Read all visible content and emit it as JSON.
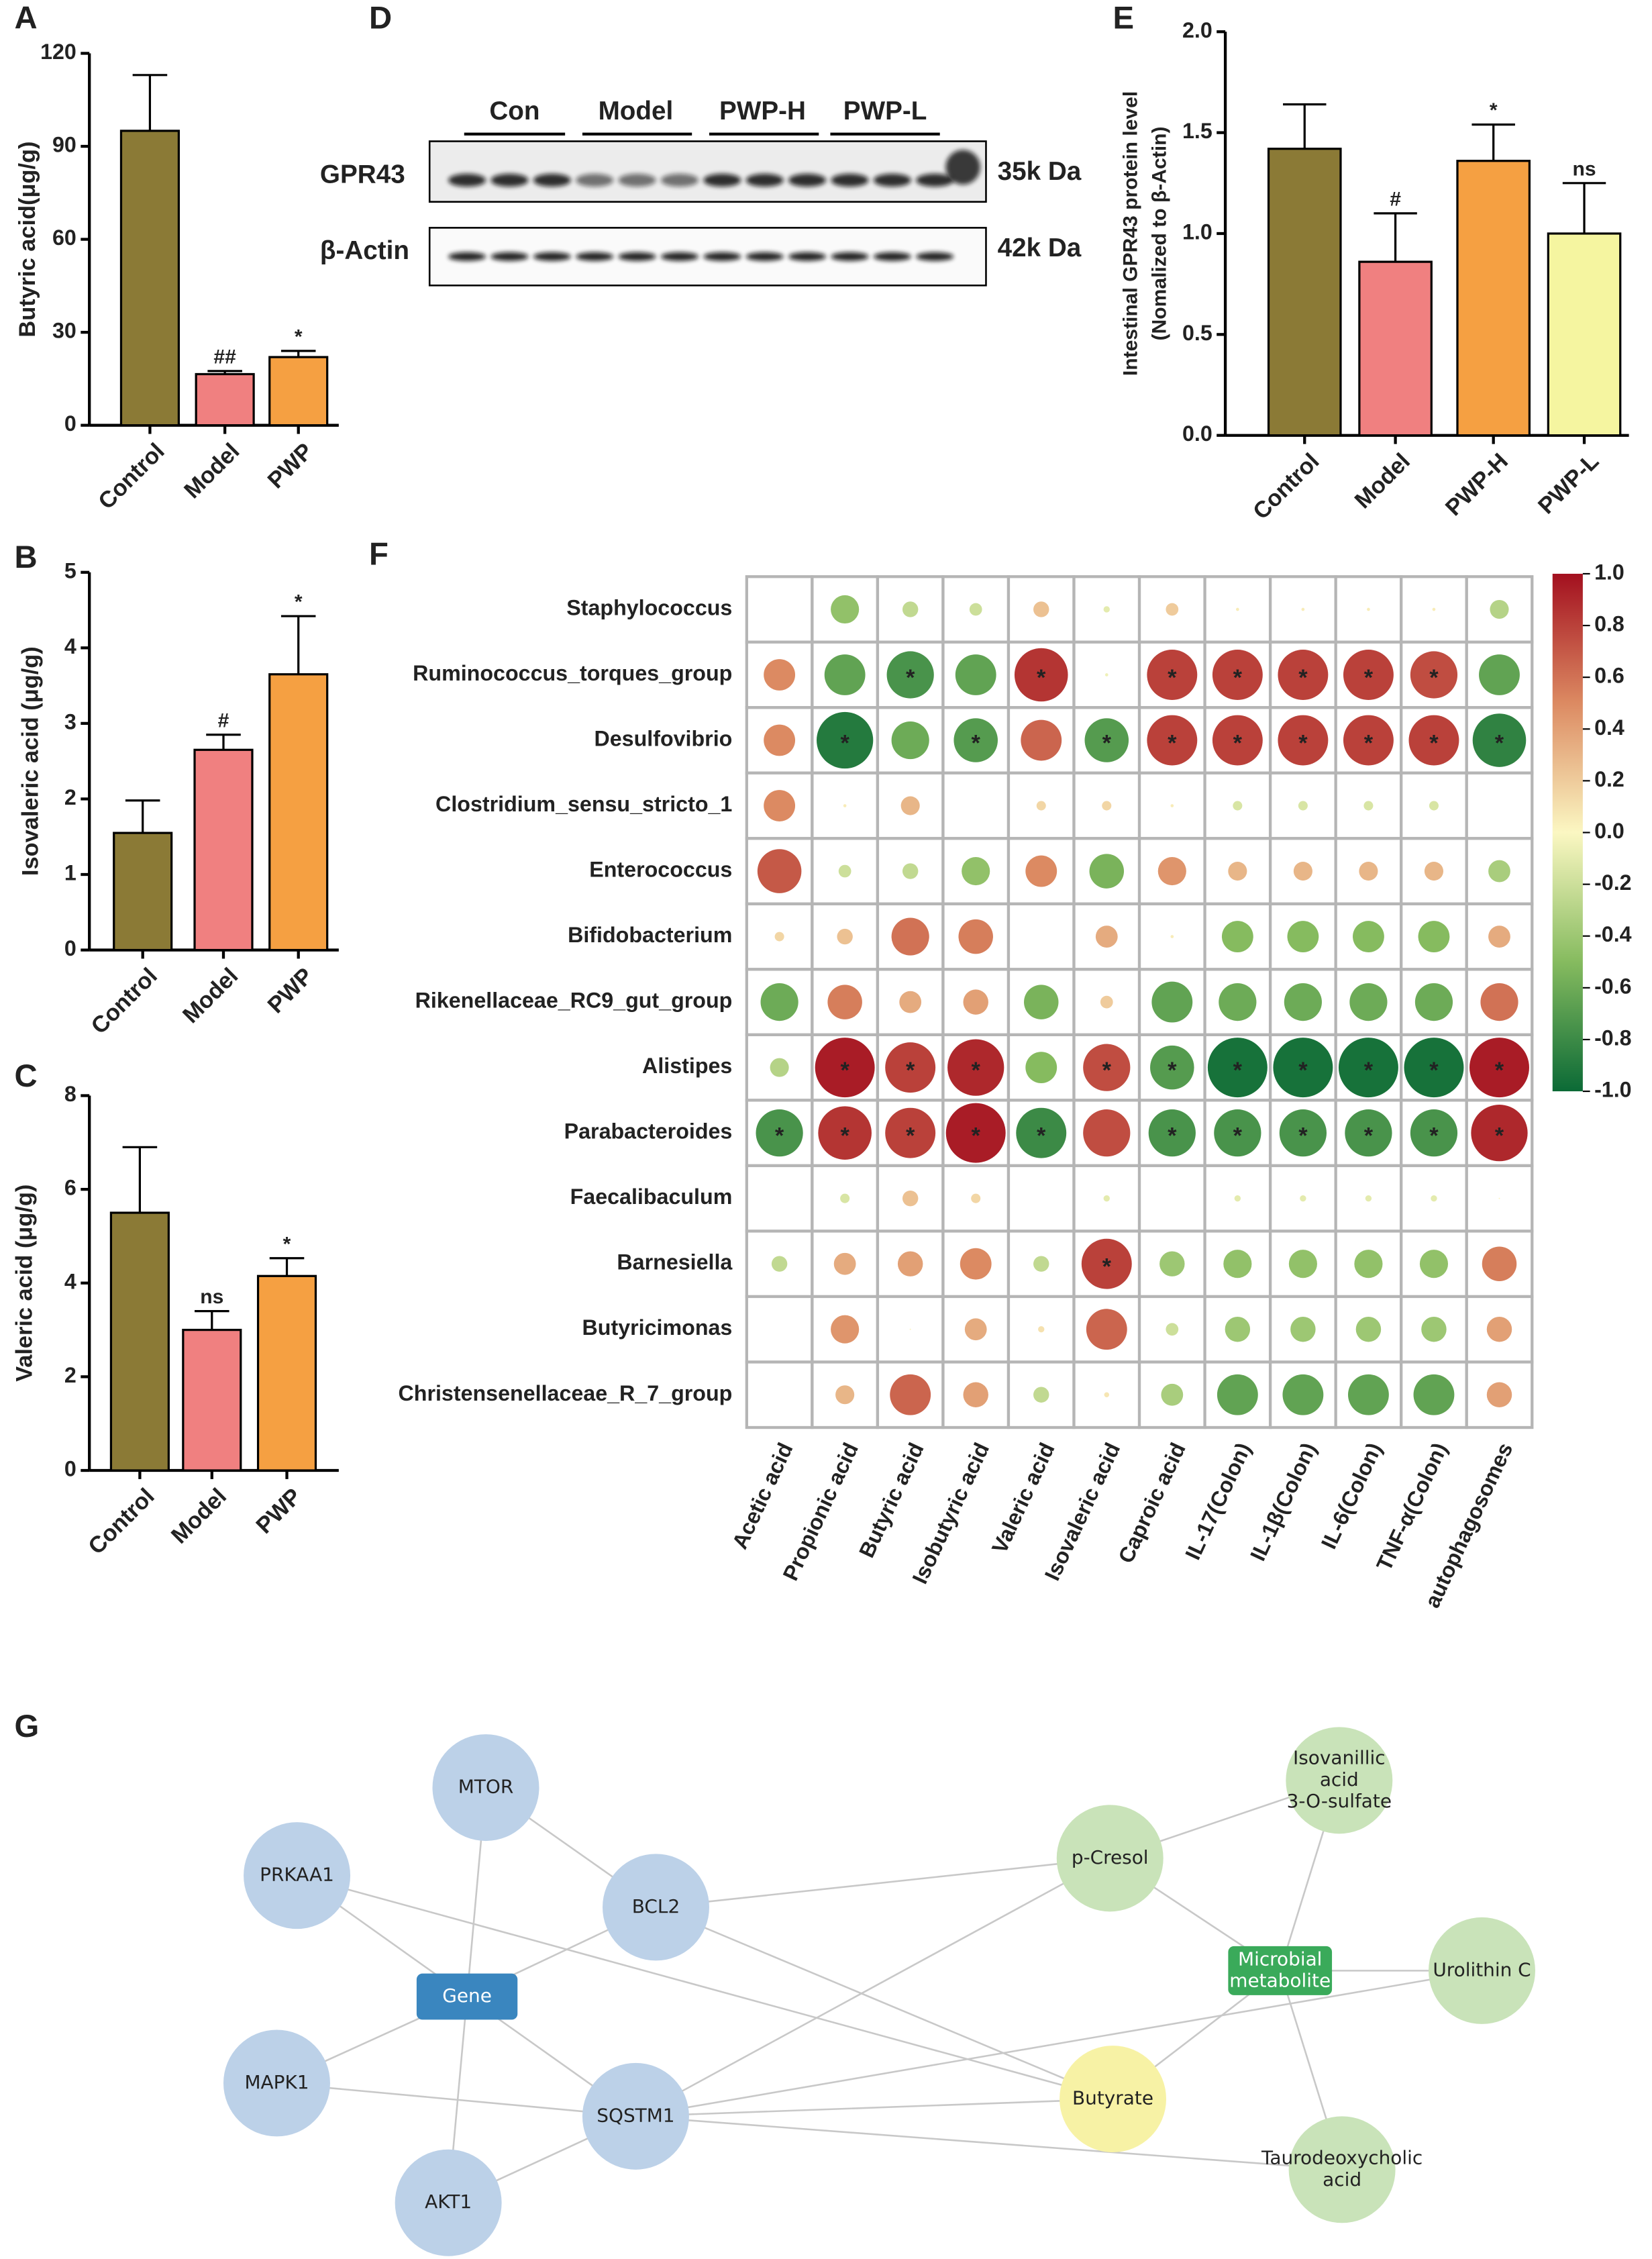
{
  "chart_data": [
    {
      "type": "bar",
      "panel": "A",
      "ylabel": "Butyric acid(μg/g)",
      "categories": [
        "Control",
        "Model",
        "PWP"
      ],
      "values": [
        95,
        16.5,
        22
      ],
      "errors": [
        18,
        1,
        2
      ],
      "annotations": [
        null,
        "##",
        "*"
      ],
      "colors": [
        "#8b7a36",
        "#f08080",
        "#f5a042"
      ],
      "ylim": [
        0,
        120
      ],
      "yticks": [
        0,
        30,
        60,
        90,
        120
      ]
    },
    {
      "type": "bar",
      "panel": "B",
      "ylabel": "Isovaleric acid (μg/g)",
      "categories": [
        "Control",
        "Model",
        "PWP"
      ],
      "values": [
        1.55,
        2.65,
        3.65
      ],
      "errors": [
        0.43,
        0.2,
        0.77
      ],
      "annotations": [
        null,
        "#",
        "*"
      ],
      "colors": [
        "#8b7a36",
        "#f08080",
        "#f5a042"
      ],
      "ylim": [
        0,
        5
      ],
      "yticks": [
        0,
        1,
        2,
        3,
        4,
        5
      ]
    },
    {
      "type": "bar",
      "panel": "C",
      "ylabel": "Valeric acid (μg/g)",
      "categories": [
        "Control",
        "Model",
        "PWP"
      ],
      "values": [
        5.5,
        3.0,
        4.15
      ],
      "errors": [
        1.4,
        0.4,
        0.38
      ],
      "annotations": [
        null,
        "ns",
        "*"
      ],
      "colors": [
        "#8b7a36",
        "#f08080",
        "#f5a042"
      ],
      "ylim": [
        0,
        8
      ],
      "yticks": [
        0,
        2,
        4,
        6,
        8
      ]
    },
    {
      "type": "bar",
      "panel": "E",
      "ylabel": [
        "Intestinal GPR43 protein level",
        "(Nomalized to β-Actin)"
      ],
      "categories": [
        "Control",
        "Model",
        "PWP-H",
        "PWP-L"
      ],
      "values": [
        1.42,
        0.86,
        1.36,
        1.0
      ],
      "errors": [
        0.22,
        0.24,
        0.18,
        0.25
      ],
      "annotations": [
        null,
        "#",
        "*",
        "ns"
      ],
      "colors": [
        "#8b7a36",
        "#f08080",
        "#f5a042",
        "#f5f5a0"
      ],
      "ylim": [
        0,
        2
      ],
      "yticks": [
        {
          "value": 0,
          "label": "0.0"
        },
        0.5,
        {
          "value": 1,
          "label": "1.0"
        },
        1.5,
        {
          "value": 2,
          "label": "2.0"
        }
      ]
    },
    {
      "type": "corrplot",
      "panel": "F",
      "marker": "*",
      "rows": [
        "Staphylococcus",
        "Ruminococcus_torques_group",
        "Desulfovibrio",
        "Clostridium_sensu_stricto_1",
        "Enterococcus",
        "Bifidobacterium",
        "Rikenellaceae_RC9_gut_group",
        "Alistipes",
        "Parabacteroides",
        "Faecalibaculum",
        "Barnesiella",
        "Butyricimonas",
        "Christensenellaceae_R_7_group"
      ],
      "columns": [
        "Acetic acid",
        "Propionic acid",
        "Butyric acid",
        "Isobutyric acid",
        "Valeric acid",
        "Isovaleric acid",
        "Caproic acid",
        "IL-17(Colon)",
        "IL-1β(Colon)",
        "IL-6(Colon)",
        "TNF-α(Colon)",
        "autophagosomes"
      ],
      "values": [
        [
          null,
          -0.45,
          -0.25,
          -0.2,
          0.25,
          -0.1,
          0.2,
          0.05,
          0.05,
          0.05,
          0.05,
          -0.3
        ],
        [
          0.5,
          -0.65,
          -0.75,
          -0.65,
          0.85,
          -0.05,
          0.8,
          0.8,
          0.8,
          0.8,
          0.75,
          -0.65
        ],
        [
          0.5,
          -0.9,
          -0.6,
          -0.7,
          0.65,
          -0.7,
          0.8,
          0.8,
          0.8,
          0.8,
          0.8,
          -0.85
        ],
        [
          0.5,
          0.05,
          0.3,
          null,
          0.15,
          0.15,
          0.05,
          -0.15,
          -0.15,
          -0.15,
          -0.15,
          null
        ],
        [
          0.7,
          -0.2,
          -0.25,
          -0.45,
          0.5,
          -0.55,
          0.45,
          0.3,
          0.3,
          0.3,
          0.3,
          -0.35
        ],
        [
          0.15,
          0.25,
          0.6,
          0.55,
          null,
          0.35,
          0.05,
          -0.5,
          -0.5,
          -0.5,
          -0.5,
          0.35
        ],
        [
          -0.6,
          0.55,
          0.35,
          0.4,
          -0.55,
          0.2,
          -0.65,
          -0.6,
          -0.6,
          -0.6,
          -0.6,
          0.6
        ],
        [
          -0.3,
          0.95,
          0.8,
          0.9,
          -0.5,
          0.75,
          -0.7,
          -0.95,
          -0.95,
          -0.95,
          -0.95,
          0.95
        ],
        [
          -0.75,
          0.85,
          0.8,
          0.95,
          -0.8,
          0.75,
          -0.75,
          -0.75,
          -0.75,
          -0.75,
          -0.75,
          0.9
        ],
        [
          null,
          -0.15,
          0.25,
          0.15,
          null,
          -0.1,
          null,
          -0.1,
          -0.1,
          -0.1,
          -0.1,
          0.02
        ],
        [
          -0.25,
          0.35,
          0.4,
          0.5,
          -0.25,
          0.8,
          -0.4,
          -0.45,
          -0.45,
          -0.45,
          -0.45,
          0.55
        ],
        [
          null,
          0.45,
          0.02,
          0.35,
          0.1,
          0.65,
          -0.2,
          -0.4,
          -0.4,
          -0.4,
          -0.4,
          0.4
        ],
        [
          null,
          0.3,
          0.65,
          0.4,
          -0.25,
          0.08,
          -0.35,
          -0.65,
          -0.65,
          -0.65,
          -0.65,
          0.4
        ]
      ],
      "significant": [
        [
          false,
          false,
          false,
          false,
          false,
          false,
          false,
          false,
          false,
          false,
          false,
          false
        ],
        [
          false,
          false,
          true,
          false,
          true,
          false,
          true,
          true,
          true,
          true,
          true,
          false
        ],
        [
          false,
          true,
          false,
          true,
          false,
          true,
          true,
          true,
          true,
          true,
          true,
          true
        ],
        [
          false,
          false,
          false,
          false,
          false,
          false,
          false,
          false,
          false,
          false,
          false,
          false
        ],
        [
          false,
          false,
          false,
          false,
          false,
          false,
          false,
          false,
          false,
          false,
          false,
          false
        ],
        [
          false,
          false,
          false,
          false,
          false,
          false,
          false,
          false,
          false,
          false,
          false,
          false
        ],
        [
          false,
          false,
          false,
          false,
          false,
          false,
          false,
          false,
          false,
          false,
          false,
          false
        ],
        [
          false,
          true,
          true,
          true,
          false,
          true,
          true,
          true,
          true,
          true,
          true,
          true
        ],
        [
          true,
          true,
          true,
          true,
          true,
          false,
          true,
          true,
          true,
          true,
          true,
          true
        ],
        [
          false,
          false,
          false,
          false,
          false,
          false,
          false,
          false,
          false,
          false,
          false,
          false
        ],
        [
          false,
          false,
          false,
          false,
          false,
          true,
          false,
          false,
          false,
          false,
          false,
          false
        ],
        [
          false,
          false,
          false,
          false,
          false,
          false,
          false,
          false,
          false,
          false,
          false,
          false
        ],
        [
          false,
          false,
          false,
          false,
          false,
          false,
          false,
          false,
          false,
          false,
          false,
          false
        ]
      ],
      "clim": [
        -1,
        1
      ],
      "cticks": [
        {
          "value": 1,
          "label": "1.0"
        },
        0.8,
        0.6,
        0.4,
        0.2,
        {
          "value": 0,
          "label": "0.0"
        },
        -0.2,
        -0.4,
        -0.6,
        -0.8,
        {
          "value": -1,
          "label": "-1.0"
        }
      ],
      "colorscale": [
        "#0b6a36",
        "#86bb5f",
        "#fbf7c2",
        "#dc8a62",
        "#a3101f"
      ]
    }
  ],
  "blot": {
    "panel": "D",
    "groups": [
      "Con",
      "Model",
      "PWP-H",
      "PWP-L"
    ],
    "proteins": [
      "GPR43",
      "β-Actin"
    ],
    "sizes": [
      "35k Da",
      "42k Da"
    ]
  },
  "network": {
    "panel": "G",
    "nodes": [
      {
        "label": [
          "MTOR"
        ],
        "shape": "circle",
        "color": "#bcd1e8"
      },
      {
        "label": [
          "PRKAA1"
        ],
        "shape": "circle",
        "color": "#bcd1e8"
      },
      {
        "label": [
          "BCL2"
        ],
        "shape": "circle",
        "color": "#bcd1e8"
      },
      {
        "label": [
          "Gene"
        ],
        "shape": "rect",
        "color": "#3a86bf"
      },
      {
        "label": [
          "MAPK1"
        ],
        "shape": "circle",
        "color": "#bcd1e8"
      },
      {
        "label": [
          "SQSTM1"
        ],
        "shape": "circle",
        "color": "#bcd1e8"
      },
      {
        "label": [
          "AKT1"
        ],
        "shape": "circle",
        "color": "#bcd1e8"
      },
      {
        "label": [
          "p-Cresol"
        ],
        "shape": "circle",
        "color": "#c9e3b9"
      },
      {
        "label": [
          "Isovanillic",
          "acid",
          "3-O-sulfate"
        ],
        "shape": "circle",
        "color": "#c9e3b9"
      },
      {
        "label": [
          "Microbial",
          "metabolite"
        ],
        "shape": "rect",
        "color": "#3aaa5a"
      },
      {
        "label": [
          "Urolithin C"
        ],
        "shape": "circle",
        "color": "#c9e3b9"
      },
      {
        "label": [
          "Butyrate"
        ],
        "shape": "circle",
        "color": "#f7f2a5"
      },
      {
        "label": [
          "Taurodeoxycholic",
          "acid"
        ],
        "shape": "circle",
        "color": "#c9e3b9"
      }
    ],
    "edges": [
      [
        3,
        0
      ],
      [
        3,
        1
      ],
      [
        3,
        2
      ],
      [
        3,
        4
      ],
      [
        3,
        5
      ],
      [
        3,
        6
      ],
      [
        0,
        2
      ],
      [
        1,
        11
      ],
      [
        2,
        11
      ],
      [
        2,
        7
      ],
      [
        4,
        5
      ],
      [
        6,
        5
      ],
      [
        5,
        7
      ],
      [
        5,
        11
      ],
      [
        5,
        10
      ],
      [
        5,
        12
      ],
      [
        7,
        8
      ],
      [
        7,
        9
      ],
      [
        8,
        9
      ],
      [
        9,
        10
      ],
      [
        9,
        11
      ],
      [
        9,
        12
      ]
    ]
  }
}
